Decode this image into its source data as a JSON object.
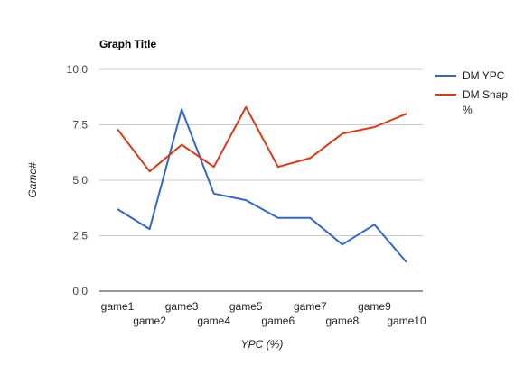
{
  "chart_data": {
    "type": "line",
    "title": "Graph Title",
    "xlabel": "YPC (%)",
    "ylabel": "Game#",
    "categories": [
      "game1",
      "game2",
      "game3",
      "game4",
      "game5",
      "game6",
      "game7",
      "game8",
      "game9",
      "game10"
    ],
    "ylim": [
      0,
      10
    ],
    "yticks": [
      "0.0",
      "2.5",
      "5.0",
      "7.5",
      "10.0"
    ],
    "grid": true,
    "legend_position": "right",
    "series": [
      {
        "name": "DM YPC",
        "color": "#3366cc",
        "values": [
          3.7,
          2.8,
          8.2,
          4.4,
          4.1,
          3.3,
          3.3,
          2.1,
          3.0,
          1.3
        ]
      },
      {
        "name": "DM Snap %",
        "color": "#dc3912",
        "values": [
          7.3,
          5.4,
          6.6,
          5.6,
          8.3,
          5.6,
          6.0,
          7.1,
          7.4,
          8.0
        ]
      }
    ],
    "legend_lines": [
      [
        "DM YPC"
      ],
      [
        "DM Snap",
        "%"
      ]
    ]
  }
}
